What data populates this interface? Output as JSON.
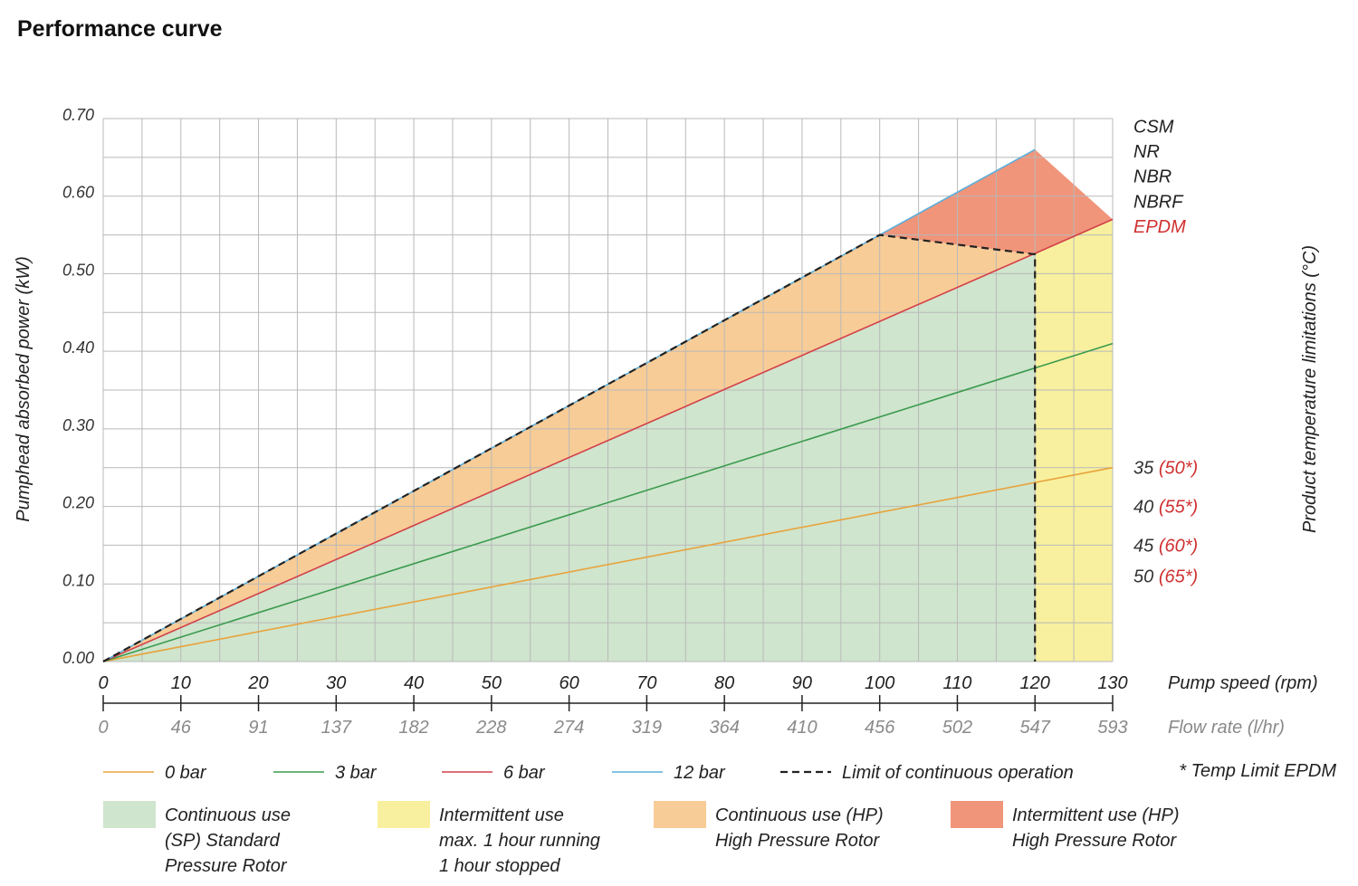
{
  "title": "Performance curve",
  "chart_data": {
    "type": "line",
    "xlabel": "Pump speed (rpm)",
    "x2label": "Flow rate (l/hr)",
    "ylabel": "Pumphead absorbed power (kW)",
    "y2label": "Product temperature limitations (°C)",
    "xlim": [
      0,
      130
    ],
    "ylim": [
      0,
      0.7
    ],
    "grid": true,
    "x_ticks": [
      "0",
      "10",
      "20",
      "30",
      "40",
      "50",
      "60",
      "70",
      "80",
      "90",
      "100",
      "110",
      "120",
      "130"
    ],
    "flow_ticks": [
      "0",
      "46",
      "91",
      "137",
      "182",
      "228",
      "274",
      "319",
      "364",
      "410",
      "456",
      "502",
      "547",
      "593"
    ],
    "y_ticks": [
      "0.00",
      "0.10",
      "0.20",
      "0.30",
      "0.40",
      "0.50",
      "0.60",
      "0.70"
    ],
    "series": [
      {
        "name": "0 bar",
        "color": "#e8a33c",
        "x": [
          0,
          130
        ],
        "y": [
          0,
          0.25
        ]
      },
      {
        "name": "3 bar",
        "color": "#3a9a4e",
        "x": [
          0,
          130
        ],
        "y": [
          0,
          0.41
        ]
      },
      {
        "name": "6 bar",
        "color": "#d2404a",
        "x": [
          0,
          130
        ],
        "y": [
          0,
          0.57
        ]
      },
      {
        "name": "12 bar",
        "color": "#5aaedc",
        "x": [
          0,
          120
        ],
        "y": [
          0,
          0.66
        ]
      }
    ],
    "limit_line": {
      "name": "Limit of continuous operation",
      "points": [
        [
          0,
          0
        ],
        [
          100,
          0.55
        ],
        [
          120,
          0.525
        ],
        [
          120,
          0
        ]
      ]
    },
    "regions": [
      {
        "name": "continuous_sp",
        "color": "#cfe5cd",
        "points": [
          [
            0,
            0
          ],
          [
            120,
            0.525
          ],
          [
            120,
            0
          ]
        ]
      },
      {
        "name": "intermittent",
        "color": "#f8f09e",
        "points": [
          [
            120,
            0
          ],
          [
            120,
            0.525
          ],
          [
            130,
            0.57
          ],
          [
            130,
            0
          ]
        ]
      },
      {
        "name": "continuous_hp",
        "color": "#f8cc96",
        "points": [
          [
            0,
            0
          ],
          [
            100,
            0.55
          ],
          [
            120,
            0.525
          ]
        ]
      },
      {
        "name": "intermittent_hp",
        "color": "#f0957a",
        "points": [
          [
            100,
            0.55
          ],
          [
            120,
            0.66
          ],
          [
            130,
            0.57
          ],
          [
            120,
            0.525
          ]
        ]
      }
    ],
    "right_labels": [
      {
        "text": "CSM",
        "y": 0.69,
        "color": "#222222"
      },
      {
        "text": "NR",
        "y": 0.658,
        "color": "#222222"
      },
      {
        "text": "NBR",
        "y": 0.626,
        "color": "#222222"
      },
      {
        "text": "NBRF",
        "y": 0.593,
        "color": "#222222"
      },
      {
        "text": "EPDM",
        "y": 0.561,
        "color": "#d03030"
      }
    ],
    "temp_labels": [
      {
        "value": "35",
        "epdm": "(50*)",
        "y": 0.25
      },
      {
        "value": "40",
        "epdm": "(55*)",
        "y": 0.2
      },
      {
        "value": "45",
        "epdm": "(60*)",
        "y": 0.15
      },
      {
        "value": "50",
        "epdm": "(65*)",
        "y": 0.11
      }
    ],
    "footnote": "* Temp Limit EPDM",
    "legend_lines": [
      {
        "label": "0 bar",
        "color": "#e8a33c",
        "dashed": false
      },
      {
        "label": "3 bar",
        "color": "#3a9a4e",
        "dashed": false
      },
      {
        "label": "6 bar",
        "color": "#d2404a",
        "dashed": false
      },
      {
        "label": "12 bar",
        "color": "#5aaedc",
        "dashed": false
      },
      {
        "label": "Limit of continuous operation",
        "color": "#222222",
        "dashed": true
      }
    ],
    "legend_regions": [
      {
        "lines": [
          "Continuous use",
          "(SP) Standard",
          "Pressure Rotor"
        ],
        "color": "#cfe5cd"
      },
      {
        "lines": [
          "Intermittent use",
          "max. 1 hour running",
          "1 hour stopped"
        ],
        "color": "#f8f09e"
      },
      {
        "lines": [
          "Continuous use (HP)",
          "High Pressure Rotor"
        ],
        "color": "#f8cc96"
      },
      {
        "lines": [
          "Intermittent use (HP)",
          "High Pressure Rotor"
        ],
        "color": "#f0957a"
      }
    ]
  }
}
